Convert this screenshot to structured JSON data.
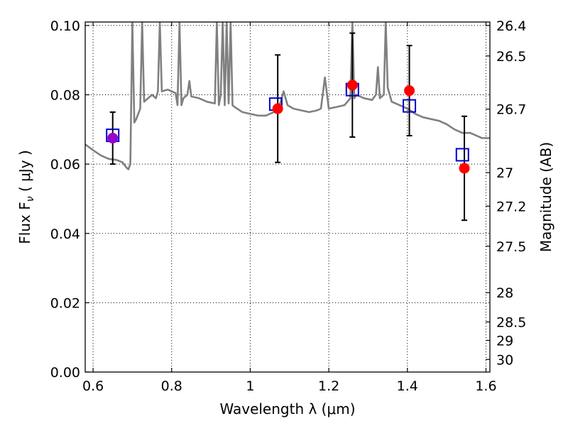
{
  "chart_data": {
    "type": "scatter",
    "xlabel": "Wavelength  λ (μm)",
    "ylabel": "Flux  F",
    "ylabel_sub": "ν",
    "ylabel_unit": "  ( μJy )",
    "y2label": "Magnitude (AB)",
    "xlim": [
      0.58,
      1.61
    ],
    "ylim": [
      0.0,
      0.101
    ],
    "grid": true,
    "x_ticks": [
      {
        "value": 0.6,
        "label": "0.6"
      },
      {
        "value": 0.8,
        "label": "0.8"
      },
      {
        "value": 1.0,
        "label": "1"
      },
      {
        "value": 1.2,
        "label": "1.2"
      },
      {
        "value": 1.4,
        "label": "1.4"
      },
      {
        "value": 1.6,
        "label": "1.6"
      }
    ],
    "y_ticks": [
      {
        "value": 0.0,
        "label": "0.00"
      },
      {
        "value": 0.02,
        "label": "0.02"
      },
      {
        "value": 0.04,
        "label": "0.04"
      },
      {
        "value": 0.06,
        "label": "0.06"
      },
      {
        "value": 0.08,
        "label": "0.08"
      },
      {
        "value": 0.1,
        "label": "0.10"
      }
    ],
    "y2_ticks": [
      {
        "mag": 26.4,
        "label": "26.4"
      },
      {
        "mag": 26.5,
        "label": "26.5"
      },
      {
        "mag": 26.7,
        "label": "26.7"
      },
      {
        "mag": 27.0,
        "label": "27"
      },
      {
        "mag": 27.2,
        "label": "27.2"
      },
      {
        "mag": 27.5,
        "label": "27.5"
      },
      {
        "mag": 28.0,
        "label": "28"
      },
      {
        "mag": 28.5,
        "label": "28.5"
      },
      {
        "mag": 29.0,
        "label": "29"
      },
      {
        "mag": 30.0,
        "label": "30"
      }
    ],
    "colors": {
      "spectrum": "#808080",
      "observed": "#ff0000",
      "model": "#0000cc",
      "overlap": "#9900cc",
      "errorbar": "#000000"
    },
    "series": [
      {
        "type": "line",
        "points": [
          [
            0.58,
            0.0657
          ],
          [
            0.6,
            0.064
          ],
          [
            0.62,
            0.0625
          ],
          [
            0.64,
            0.0615
          ],
          [
            0.66,
            0.0612
          ],
          [
            0.675,
            0.0605
          ],
          [
            0.685,
            0.059
          ],
          [
            0.69,
            0.0585
          ],
          [
            0.695,
            0.06
          ],
          [
            0.7,
            0.101
          ],
          [
            0.705,
            0.072
          ],
          [
            0.71,
            0.073
          ],
          [
            0.72,
            0.076
          ],
          [
            0.725,
            0.101
          ],
          [
            0.73,
            0.078
          ],
          [
            0.74,
            0.079
          ],
          [
            0.75,
            0.08
          ],
          [
            0.76,
            0.079
          ],
          [
            0.765,
            0.081
          ],
          [
            0.77,
            0.101
          ],
          [
            0.775,
            0.081
          ],
          [
            0.79,
            0.0815
          ],
          [
            0.8,
            0.081
          ],
          [
            0.81,
            0.0805
          ],
          [
            0.815,
            0.077
          ],
          [
            0.82,
            0.101
          ],
          [
            0.825,
            0.077
          ],
          [
            0.83,
            0.079
          ],
          [
            0.84,
            0.08
          ],
          [
            0.845,
            0.084
          ],
          [
            0.85,
            0.0795
          ],
          [
            0.87,
            0.079
          ],
          [
            0.89,
            0.078
          ],
          [
            0.91,
            0.0775
          ],
          [
            0.915,
            0.101
          ],
          [
            0.92,
            0.077
          ],
          [
            0.925,
            0.08
          ],
          [
            0.93,
            0.101
          ],
          [
            0.935,
            0.077
          ],
          [
            0.94,
            0.101
          ],
          [
            0.945,
            0.0775
          ],
          [
            0.95,
            0.101
          ],
          [
            0.955,
            0.077
          ],
          [
            0.96,
            0.0765
          ],
          [
            0.98,
            0.075
          ],
          [
            1.0,
            0.0745
          ],
          [
            1.02,
            0.074
          ],
          [
            1.04,
            0.074
          ],
          [
            1.06,
            0.075
          ],
          [
            1.075,
            0.077
          ],
          [
            1.085,
            0.081
          ],
          [
            1.095,
            0.077
          ],
          [
            1.11,
            0.076
          ],
          [
            1.13,
            0.0755
          ],
          [
            1.15,
            0.075
          ],
          [
            1.17,
            0.0755
          ],
          [
            1.18,
            0.076
          ],
          [
            1.19,
            0.085
          ],
          [
            1.2,
            0.076
          ],
          [
            1.22,
            0.0765
          ],
          [
            1.24,
            0.077
          ],
          [
            1.255,
            0.079
          ],
          [
            1.26,
            0.101
          ],
          [
            1.265,
            0.079
          ],
          [
            1.27,
            0.08
          ],
          [
            1.29,
            0.079
          ],
          [
            1.31,
            0.0785
          ],
          [
            1.32,
            0.08
          ],
          [
            1.325,
            0.088
          ],
          [
            1.33,
            0.079
          ],
          [
            1.34,
            0.08
          ],
          [
            1.345,
            0.101
          ],
          [
            1.35,
            0.082
          ],
          [
            1.36,
            0.078
          ],
          [
            1.38,
            0.077
          ],
          [
            1.4,
            0.076
          ],
          [
            1.42,
            0.0745
          ],
          [
            1.44,
            0.0735
          ],
          [
            1.46,
            0.073
          ],
          [
            1.48,
            0.0725
          ],
          [
            1.5,
            0.0715
          ],
          [
            1.52,
            0.07
          ],
          [
            1.54,
            0.069
          ],
          [
            1.56,
            0.069
          ],
          [
            1.58,
            0.068
          ],
          [
            1.59,
            0.0675
          ],
          [
            1.61,
            0.0675
          ]
        ]
      },
      {
        "type": "scatter",
        "points": [
          {
            "x": 0.65,
            "y": 0.0675,
            "err": 0.0075
          },
          {
            "x": 1.07,
            "y": 0.076,
            "err": 0.0155
          },
          {
            "x": 1.26,
            "y": 0.0828,
            "err": 0.015
          },
          {
            "x": 1.405,
            "y": 0.0812,
            "err": 0.013
          },
          {
            "x": 1.545,
            "y": 0.0588,
            "err": 0.015
          }
        ]
      },
      {
        "type": "scatter",
        "points": [
          {
            "x": 0.65,
            "y": 0.0683
          },
          {
            "x": 1.065,
            "y": 0.0773
          },
          {
            "x": 1.26,
            "y": 0.0815
          },
          {
            "x": 1.405,
            "y": 0.0768
          },
          {
            "x": 1.54,
            "y": 0.0627
          }
        ]
      }
    ]
  }
}
